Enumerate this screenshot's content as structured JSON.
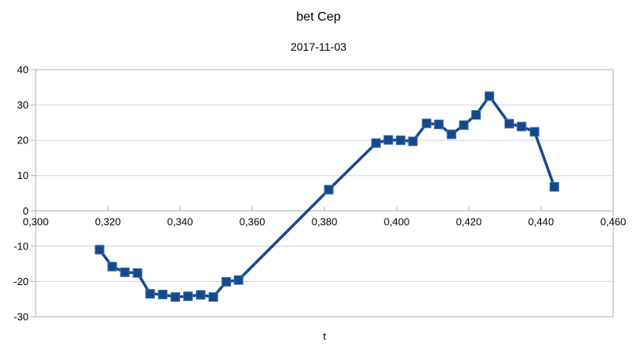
{
  "header": {
    "title": "bet Cep",
    "subtitle": "2017-11-03"
  },
  "chart_data": {
    "type": "line",
    "title": "bet Cep",
    "subtitle": "2017-11-03",
    "xlabel": "t",
    "ylabel": "",
    "xlim": [
      0.3,
      0.46
    ],
    "ylim": [
      -30,
      40
    ],
    "x_tick_values": [
      0.3,
      0.32,
      0.34,
      0.36,
      0.38,
      0.4,
      0.42,
      0.44,
      0.46
    ],
    "x_tick_labels": [
      "0,300",
      "0,320",
      "0,340",
      "0,360",
      "0,380",
      "0,400",
      "0,420",
      "0,440",
      "0,460"
    ],
    "y_tick_values": [
      40,
      30,
      20,
      10,
      0,
      -10,
      -20,
      -30
    ],
    "y_tick_labels": [
      "40",
      "30",
      "20",
      "10",
      "0",
      "-10",
      "-20",
      "-30"
    ],
    "grid": "horizontal",
    "legend": "none",
    "x_axis_position": "zero-line",
    "series": [
      {
        "name": "bet Cep",
        "marker": "square",
        "points": [
          [
            0.3177,
            -11.0
          ],
          [
            0.3212,
            -15.8
          ],
          [
            0.3247,
            -17.4
          ],
          [
            0.3282,
            -17.6
          ],
          [
            0.3317,
            -23.5
          ],
          [
            0.3352,
            -23.7
          ],
          [
            0.3387,
            -24.4
          ],
          [
            0.3422,
            -24.2
          ],
          [
            0.3457,
            -23.8
          ],
          [
            0.3492,
            -24.4
          ],
          [
            0.3528,
            -20.1
          ],
          [
            0.3562,
            -19.6
          ],
          [
            0.3812,
            6.0
          ],
          [
            0.3943,
            19.2
          ],
          [
            0.3977,
            20.1
          ],
          [
            0.4011,
            20.0
          ],
          [
            0.4045,
            19.7
          ],
          [
            0.4083,
            24.8
          ],
          [
            0.4117,
            24.5
          ],
          [
            0.4152,
            21.7
          ],
          [
            0.4186,
            24.3
          ],
          [
            0.422,
            27.2
          ],
          [
            0.4257,
            32.5
          ],
          [
            0.4312,
            24.7
          ],
          [
            0.4346,
            23.9
          ],
          [
            0.4382,
            22.4
          ],
          [
            0.4437,
            6.8
          ]
        ]
      }
    ]
  },
  "colors": {
    "series": "#15498D",
    "marker_edge": "#3f6fa6",
    "grid": "#d2d2d2",
    "axis": "#b2b2b2",
    "text": "#000000",
    "background": "#ffffff"
  }
}
